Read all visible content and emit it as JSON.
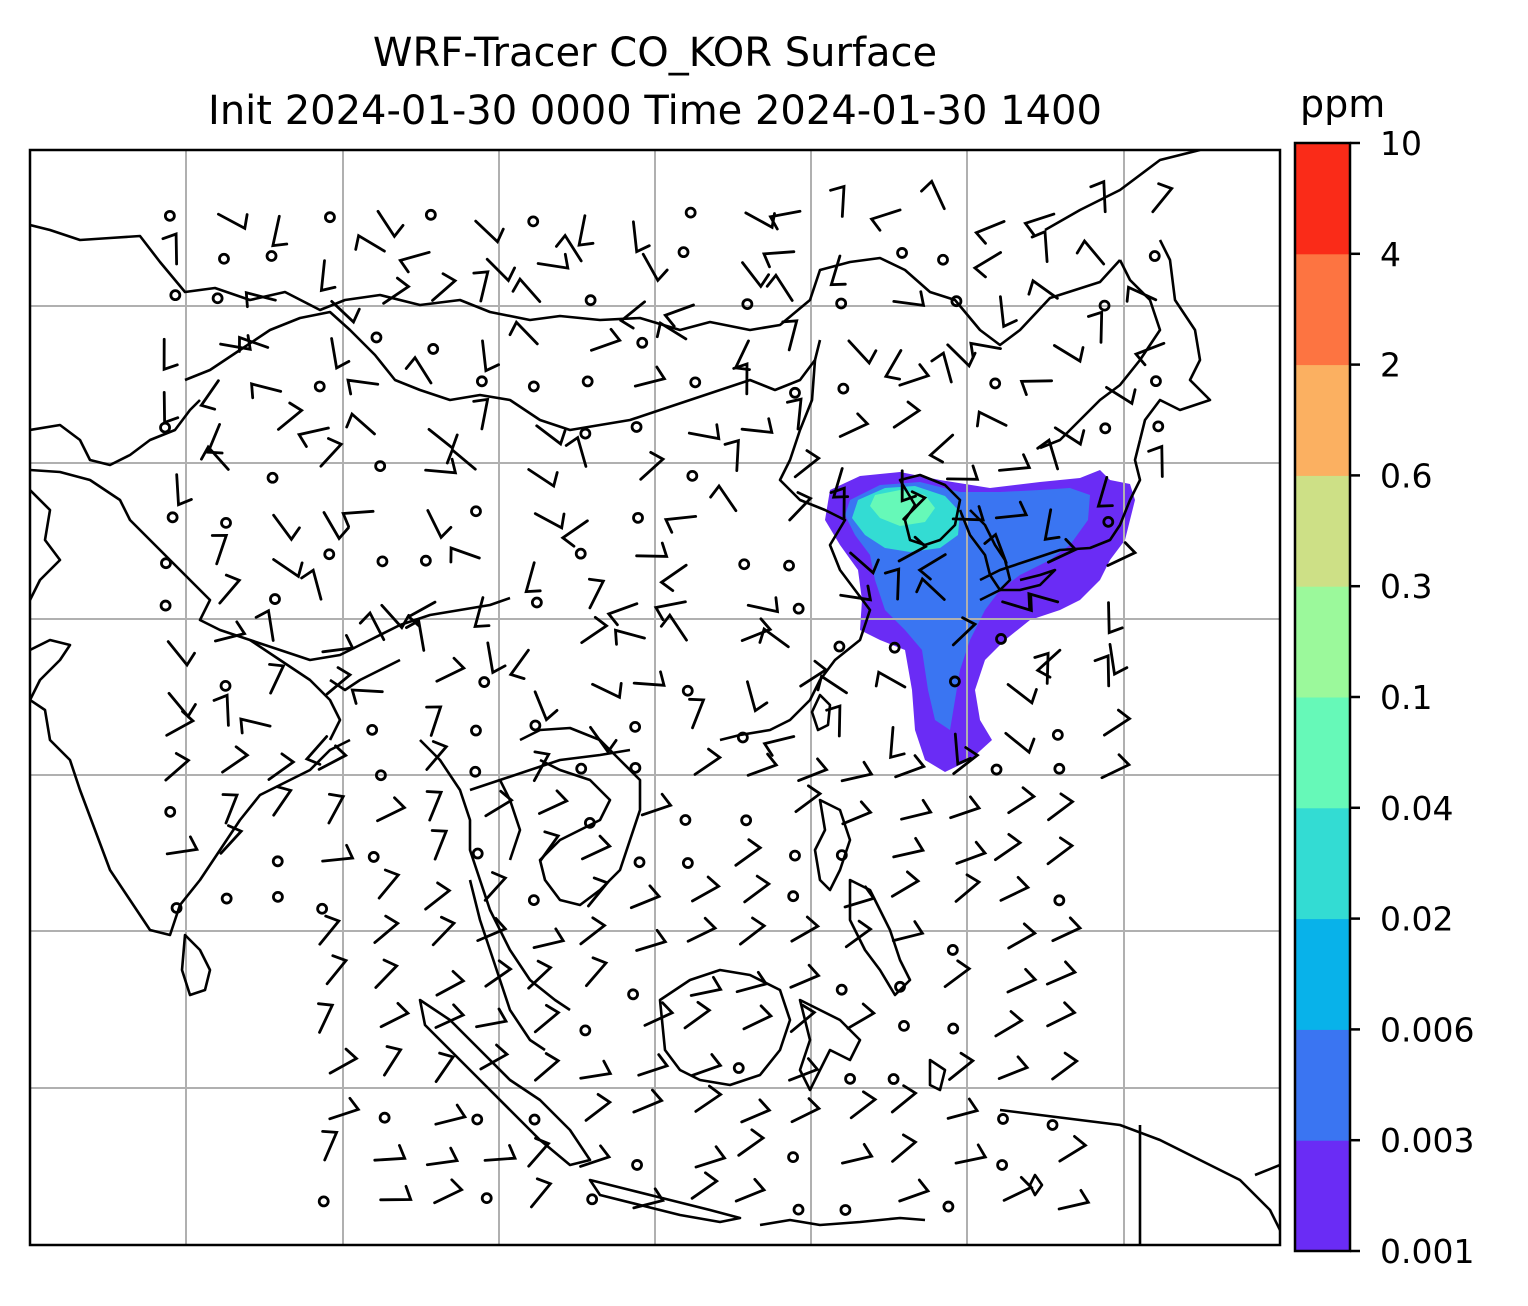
{
  "title": {
    "line1": "WRF-Tracer CO_KOR Surface",
    "line2": "Init 2024-01-30 0000 Time 2024-01-30 1400"
  },
  "colorbar": {
    "unit": "ppm",
    "levels": [
      "0.001",
      "0.003",
      "0.006",
      "0.02",
      "0.04",
      "0.1",
      "0.3",
      "0.6",
      "2",
      "4",
      "10"
    ],
    "colors": [
      "#6a2cf5",
      "#3a75f2",
      "#08b2ea",
      "#33dcd3",
      "#66f9b8",
      "#9bf99b",
      "#cde086",
      "#fbb061",
      "#fd7441",
      "#fa2b18"
    ]
  },
  "map": {
    "grid": "on",
    "wind_barbs": "on",
    "plume_colors": {
      "outer": "#6a2cf5",
      "mid": "#3a75f2",
      "inner": "#33dcd3",
      "core": "#66f9b8"
    }
  }
}
